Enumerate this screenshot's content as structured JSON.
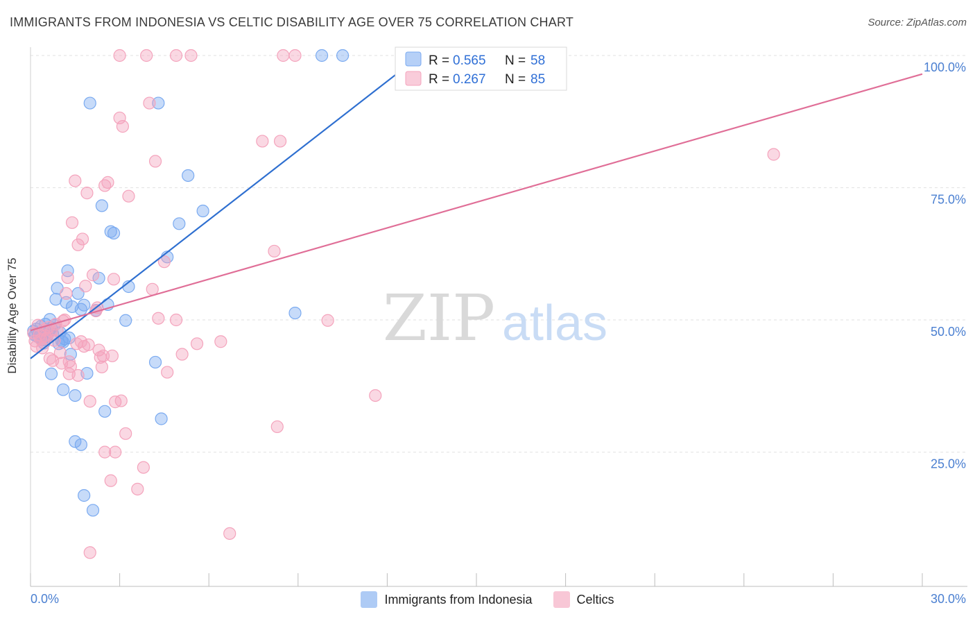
{
  "chart_data": {
    "type": "scatter",
    "title": "IMMIGRANTS FROM INDONESIA VS CELTIC DISABILITY AGE OVER 75 CORRELATION CHART",
    "source": "Source: ZipAtlas.com",
    "xlabel": "",
    "ylabel": "Disability Age Over 75",
    "xlim": [
      0,
      30
    ],
    "ylim": [
      0,
      100
    ],
    "x_tick_labels": [
      "0.0%",
      "30.0%"
    ],
    "y_ticks": [
      25,
      50,
      75,
      100
    ],
    "y_tick_labels": [
      "25.0%",
      "50.0%",
      "75.0%",
      "100.0%"
    ],
    "watermark": {
      "zip": "ZIP",
      "atlas": "atlas"
    },
    "legend": {
      "r_label": "R =",
      "n_label": "N =",
      "entries": [
        {
          "r": "0.565",
          "n": "58",
          "color": "#7aaaf0"
        },
        {
          "r": "0.267",
          "n": "85",
          "color": "#f4a3bc"
        }
      ]
    },
    "series": [
      {
        "name": "Immigrants from Indonesia",
        "color": "#7aaaf0",
        "line_color": "#2e6fd0",
        "trend": {
          "x": [
            0.0,
            13.0
          ],
          "y": [
            42.7,
            99.5
          ]
        },
        "points": [
          [
            0.1,
            47.9
          ],
          [
            0.15,
            47.1
          ],
          [
            0.2,
            48.3
          ],
          [
            0.25,
            46.8
          ],
          [
            0.3,
            47.5
          ],
          [
            0.35,
            48.8
          ],
          [
            0.4,
            46.2
          ],
          [
            0.45,
            45.6
          ],
          [
            0.5,
            49.2
          ],
          [
            0.55,
            46.9
          ],
          [
            0.6,
            47.7
          ],
          [
            0.65,
            50.1
          ],
          [
            0.7,
            48.5
          ],
          [
            0.75,
            47.3
          ],
          [
            0.8,
            49.0
          ],
          [
            0.85,
            53.9
          ],
          [
            0.9,
            56.0
          ],
          [
            1.0,
            47.6
          ],
          [
            1.05,
            46.0
          ],
          [
            1.1,
            45.8
          ],
          [
            1.15,
            46.4
          ],
          [
            1.2,
            53.3
          ],
          [
            1.25,
            59.3
          ],
          [
            1.3,
            46.6
          ],
          [
            1.4,
            52.5
          ],
          [
            1.5,
            35.7
          ],
          [
            1.6,
            55.0
          ],
          [
            1.7,
            52.0
          ],
          [
            1.8,
            52.8
          ],
          [
            1.9,
            39.9
          ],
          [
            2.0,
            91.0
          ],
          [
            2.2,
            51.8
          ],
          [
            2.3,
            57.9
          ],
          [
            2.4,
            71.6
          ],
          [
            2.5,
            32.7
          ],
          [
            2.6,
            52.9
          ],
          [
            2.7,
            66.7
          ],
          [
            2.8,
            66.4
          ],
          [
            3.2,
            49.9
          ],
          [
            3.3,
            56.3
          ],
          [
            4.2,
            42.0
          ],
          [
            4.3,
            91.0
          ],
          [
            4.4,
            31.3
          ],
          [
            4.6,
            61.9
          ],
          [
            5.0,
            68.2
          ],
          [
            5.3,
            77.3
          ],
          [
            5.8,
            70.6
          ],
          [
            8.9,
            51.3
          ],
          [
            9.8,
            100
          ],
          [
            10.5,
            100
          ],
          [
            1.5,
            27.0
          ],
          [
            1.7,
            26.4
          ],
          [
            1.8,
            16.8
          ],
          [
            2.1,
            14.0
          ],
          [
            0.7,
            39.8
          ],
          [
            1.1,
            36.8
          ],
          [
            0.95,
            45.5
          ],
          [
            1.35,
            43.5
          ]
        ]
      },
      {
        "name": "Celtics",
        "color": "#f4a3bc",
        "line_color": "#e06e97",
        "trend": {
          "x": [
            0.0,
            30.0
          ],
          "y": [
            48.0,
            96.5
          ]
        },
        "points": [
          [
            0.1,
            47.5
          ],
          [
            0.15,
            46.0
          ],
          [
            0.2,
            45.0
          ],
          [
            0.25,
            49.0
          ],
          [
            0.3,
            47.2
          ],
          [
            0.35,
            46.3
          ],
          [
            0.45,
            48.1
          ],
          [
            0.5,
            47.0
          ],
          [
            0.55,
            46.5
          ],
          [
            0.6,
            48.6
          ],
          [
            0.7,
            47.9
          ],
          [
            0.75,
            42.3
          ],
          [
            0.8,
            46.1
          ],
          [
            0.85,
            49.2
          ],
          [
            0.9,
            48.0
          ],
          [
            1.0,
            43.8
          ],
          [
            1.05,
            41.8
          ],
          [
            1.1,
            49.8
          ],
          [
            1.15,
            50.0
          ],
          [
            1.2,
            55.0
          ],
          [
            1.25,
            58.0
          ],
          [
            1.3,
            42.1
          ],
          [
            1.35,
            41.2
          ],
          [
            1.4,
            68.4
          ],
          [
            1.5,
            76.3
          ],
          [
            1.55,
            45.5
          ],
          [
            1.6,
            64.2
          ],
          [
            1.7,
            45.9
          ],
          [
            1.75,
            65.3
          ],
          [
            1.8,
            45.0
          ],
          [
            1.85,
            56.4
          ],
          [
            1.9,
            74.0
          ],
          [
            2.0,
            34.6
          ],
          [
            2.1,
            58.5
          ],
          [
            2.2,
            51.7
          ],
          [
            2.25,
            52.3
          ],
          [
            2.3,
            44.3
          ],
          [
            2.35,
            42.9
          ],
          [
            2.4,
            41.1
          ],
          [
            2.45,
            43.2
          ],
          [
            2.5,
            75.4
          ],
          [
            2.6,
            76.0
          ],
          [
            2.7,
            19.6
          ],
          [
            2.75,
            43.2
          ],
          [
            2.8,
            57.7
          ],
          [
            2.85,
            34.5
          ],
          [
            3.0,
            88.2
          ],
          [
            3.05,
            34.7
          ],
          [
            3.1,
            86.6
          ],
          [
            3.2,
            28.5
          ],
          [
            3.3,
            73.4
          ],
          [
            3.6,
            18.0
          ],
          [
            3.8,
            22.1
          ],
          [
            4.0,
            91.0
          ],
          [
            4.1,
            55.8
          ],
          [
            4.2,
            80.0
          ],
          [
            4.3,
            50.3
          ],
          [
            4.5,
            61.0
          ],
          [
            4.6,
            40.1
          ],
          [
            4.9,
            50.0
          ],
          [
            5.1,
            43.5
          ],
          [
            5.6,
            45.5
          ],
          [
            6.4,
            45.9
          ],
          [
            6.7,
            9.6
          ],
          [
            7.8,
            83.8
          ],
          [
            8.2,
            63.0
          ],
          [
            8.3,
            29.8
          ],
          [
            8.4,
            83.8
          ],
          [
            8.5,
            100
          ],
          [
            8.9,
            100
          ],
          [
            10.0,
            49.9
          ],
          [
            11.6,
            35.7
          ],
          [
            25.0,
            81.3
          ],
          [
            3.0,
            100
          ],
          [
            3.9,
            100
          ],
          [
            4.9,
            100
          ],
          [
            5.4,
            100
          ],
          [
            2.0,
            6.0
          ],
          [
            1.3,
            39.8
          ],
          [
            1.6,
            39.5
          ],
          [
            2.5,
            25.0
          ],
          [
            2.85,
            25.0
          ],
          [
            0.4,
            44.7
          ],
          [
            0.65,
            42.7
          ],
          [
            1.95,
            45.3
          ]
        ]
      }
    ]
  }
}
